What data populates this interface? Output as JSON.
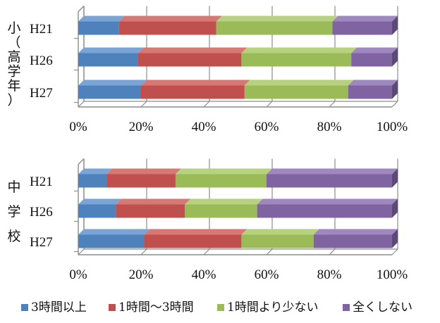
{
  "chart_data": [
    {
      "type": "bar",
      "orientation": "horizontal",
      "stacked": "percent",
      "group_label_chars": [
        "小",
        "（",
        "高",
        "学",
        "年",
        "）"
      ],
      "categories": [
        "H21",
        "H26",
        "H27"
      ],
      "series": [
        {
          "name": "3時間以上",
          "values": [
            13,
            19,
            20
          ]
        },
        {
          "name": "1時間～3時間",
          "values": [
            31,
            33,
            33
          ]
        },
        {
          "name": "1時間より少ない",
          "values": [
            37,
            35,
            33
          ]
        },
        {
          "name": "全くしない",
          "values": [
            19,
            13,
            14
          ]
        }
      ],
      "xlim": [
        0,
        100
      ],
      "x_ticks": [
        "0%",
        "20%",
        "40%",
        "60%",
        "80%",
        "100%"
      ],
      "grid": true
    },
    {
      "type": "bar",
      "orientation": "horizontal",
      "stacked": "percent",
      "group_label_chars": [
        "中",
        "学",
        "校"
      ],
      "categories": [
        "H21",
        "H26",
        "H27"
      ],
      "series": [
        {
          "name": "3時間以上",
          "values": [
            9,
            12,
            21
          ]
        },
        {
          "name": "1時間～3時間",
          "values": [
            22,
            22,
            31
          ]
        },
        {
          "name": "1時間より少ない",
          "values": [
            29,
            23,
            23
          ]
        },
        {
          "name": "全くしない",
          "values": [
            40,
            43,
            25
          ]
        }
      ],
      "xlim": [
        0,
        100
      ],
      "x_ticks": [
        "0%",
        "20%",
        "40%",
        "60%",
        "80%",
        "100%"
      ],
      "grid": true
    }
  ],
  "legend": {
    "placement": "bottom",
    "items": [
      "3時間以上",
      "1時間～3時間",
      "1時間より少ない",
      "全くしない"
    ]
  },
  "colors": {
    "series": [
      "#4f81bd",
      "#c0504d",
      "#9bbb59",
      "#8064a2"
    ],
    "series_dark": [
      "#375e8e",
      "#8f3936",
      "#718a40",
      "#5d4978"
    ],
    "series_light": [
      "#7aa3d6",
      "#d87875",
      "#b6d27e",
      "#9f87c0"
    ],
    "grid": "#8c8c8c",
    "text": "#111111"
  }
}
